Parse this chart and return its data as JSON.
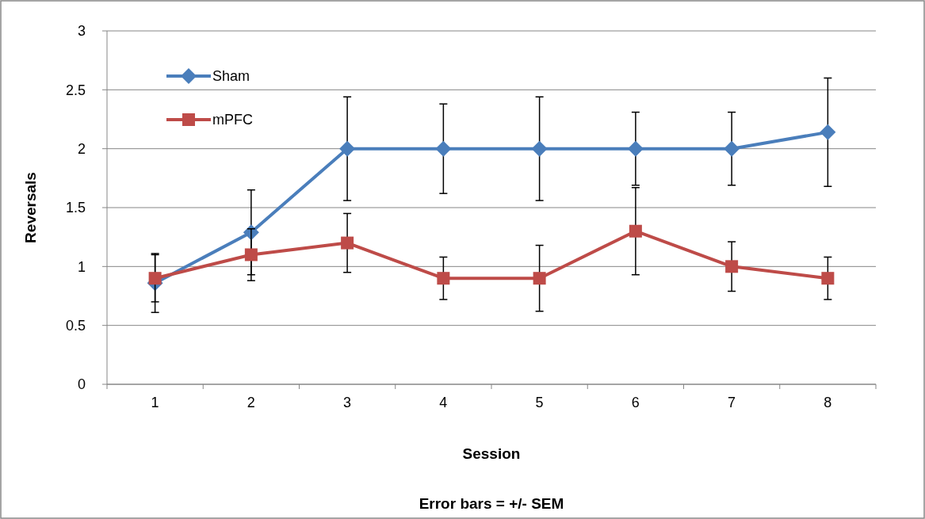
{
  "chart_data": {
    "type": "line",
    "xlabel": "Session",
    "ylabel": "Reversals",
    "annotations": [
      "Error bars = +/- SEM"
    ],
    "categories": [
      "1",
      "2",
      "3",
      "4",
      "5",
      "6",
      "7",
      "8"
    ],
    "series": [
      {
        "name": "Sham",
        "color": "#4a7ebb",
        "marker": "diamond",
        "values": [
          0.86,
          1.29,
          2.0,
          2.0,
          2.0,
          2.0,
          2.0,
          2.14
        ],
        "errors": [
          0.25,
          0.36,
          0.44,
          0.38,
          0.44,
          0.31,
          0.31,
          0.46
        ]
      },
      {
        "name": "mPFC",
        "color": "#be4b48",
        "marker": "square",
        "values": [
          0.9,
          1.1,
          1.2,
          0.9,
          0.9,
          1.3,
          1.0,
          0.9
        ],
        "errors": [
          0.2,
          0.22,
          0.25,
          0.18,
          0.28,
          0.37,
          0.21,
          0.18
        ]
      }
    ],
    "ylim": [
      0,
      3
    ],
    "yticks": [
      0,
      0.5,
      1,
      1.5,
      2,
      2.5,
      3
    ],
    "grid": "y",
    "legend": "top left"
  }
}
